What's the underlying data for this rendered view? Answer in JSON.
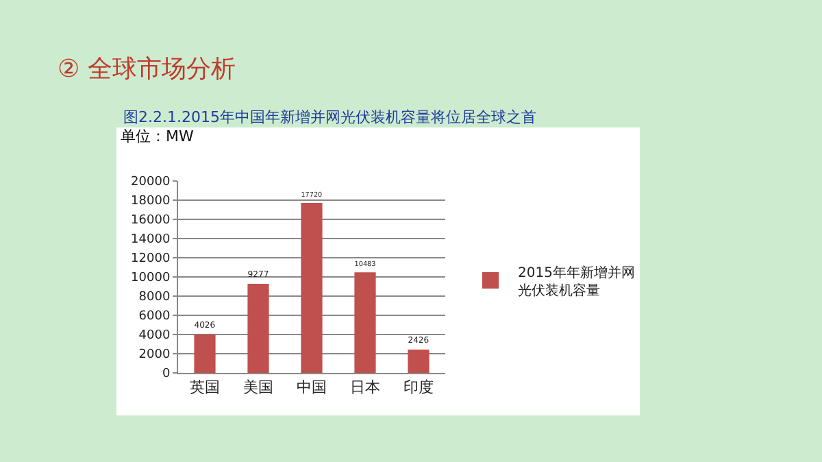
{
  "chart_data": {
    "type": "bar",
    "title": "② 全球市场分析",
    "subtitle": "图2.2.1.2015年中国年新增并网光伏装机容量将位居全球之首",
    "ylabel": "单位：MW",
    "categories": [
      "英国",
      "美国",
      "中国",
      "日本",
      "印度"
    ],
    "series": [
      {
        "name": "2015年年新增并网光伏装机容量",
        "color": "#c0504d",
        "values": [
          4026,
          9277,
          17720,
          10483,
          2426
        ]
      }
    ],
    "ylim": [
      0,
      20000
    ],
    "yticks": [
      0,
      2000,
      4000,
      6000,
      8000,
      10000,
      12000,
      14000,
      16000,
      18000,
      20000
    ],
    "grid": "y",
    "legend": "right",
    "data_labels": true
  }
}
